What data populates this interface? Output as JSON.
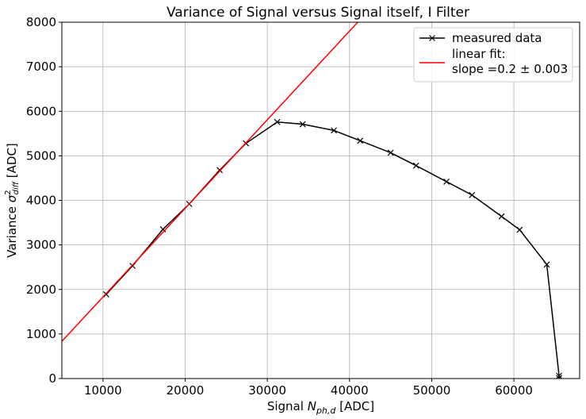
{
  "chart_data": {
    "type": "line",
    "title": "Variance of Signal versus Signal itself, I Filter",
    "xlabel": {
      "prefix": "Signal ",
      "symbol": "N",
      "subscript": "ph,d",
      "suffix": " [ADC]"
    },
    "ylabel": {
      "prefix": "Variance ",
      "symbol": "σ",
      "superscript": "2",
      "subscript": "diff",
      "suffix": " [ADC]"
    },
    "xlim": [
      5000,
      68000
    ],
    "ylim": [
      0,
      8000
    ],
    "xticks": [
      10000,
      20000,
      30000,
      40000,
      50000,
      60000
    ],
    "yticks": [
      0,
      1000,
      2000,
      3000,
      4000,
      5000,
      6000,
      7000,
      8000
    ],
    "xtick_labels": [
      "10000",
      "20000",
      "30000",
      "40000",
      "50000",
      "60000"
    ],
    "ytick_labels": [
      "0",
      "1000",
      "2000",
      "3000",
      "4000",
      "5000",
      "6000",
      "7000",
      "8000"
    ],
    "grid": true,
    "legend_position": "top-right",
    "series": [
      {
        "name": "measured data",
        "style": "line-with-x-markers",
        "color": "#000000",
        "x": [
          10400,
          13600,
          17300,
          20500,
          24200,
          27400,
          31200,
          34300,
          38100,
          41300,
          45000,
          48100,
          51800,
          54900,
          58500,
          60700,
          64000,
          65500,
          65500
        ],
        "y": [
          1890,
          2530,
          3350,
          3920,
          4680,
          5280,
          5760,
          5710,
          5570,
          5340,
          5070,
          4780,
          4420,
          4120,
          3640,
          3340,
          2560,
          60,
          10
        ]
      },
      {
        "name": "linear fit:\nslope =0.2 ± 0.003",
        "name_lines": [
          "linear fit:",
          "slope =0.2 ± 0.003"
        ],
        "style": "line",
        "color": "#ff0000",
        "x": [
          5000,
          41000
        ],
        "y": [
          835,
          8000
        ]
      }
    ]
  }
}
